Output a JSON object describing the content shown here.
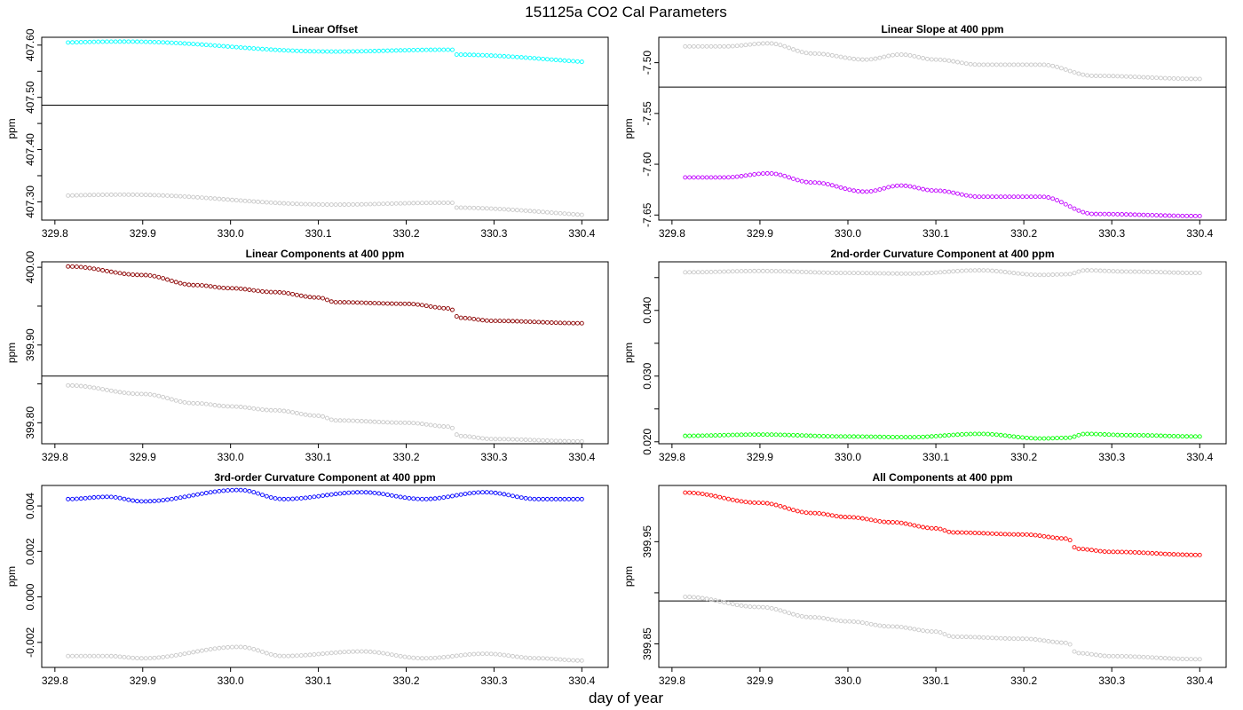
{
  "figure": {
    "title": "151125a   CO2 Cal Parameters",
    "xlabel": "day of year"
  },
  "chart_data": [
    {
      "type": "scatter",
      "title": "Linear Offset",
      "ylabel": "ppm",
      "xlim": [
        329.785,
        330.43
      ],
      "ylim": [
        407.265,
        407.615
      ],
      "xticks": [
        329.8,
        329.9,
        330.0,
        330.1,
        330.2,
        330.3,
        330.4
      ],
      "xtick_labels": [
        "329.8",
        "329.9",
        "330.0",
        "330.1",
        "330.2",
        "330.3",
        "330.4"
      ],
      "yticks": [
        407.3,
        407.35,
        407.4,
        407.45,
        407.5,
        407.55,
        407.6
      ],
      "ytick_labels": [
        "407.30",
        "",
        "407.40",
        "",
        "407.50",
        "",
        "407.60"
      ],
      "hline": 407.485,
      "series": [
        {
          "color": "#00ffff",
          "shape": "step",
          "start": 407.605,
          "end": 407.571,
          "jump_at": 330.255,
          "jump": -0.009,
          "wave": 0.005
        },
        {
          "color": "#c8c8c8",
          "shape": "step",
          "start": 407.312,
          "end": 407.278,
          "jump_at": 330.255,
          "jump": -0.009,
          "wave": 0.005
        }
      ]
    },
    {
      "type": "scatter",
      "title": "Linear Slope at 400 ppm",
      "ylabel": "ppm",
      "xlim": [
        329.785,
        330.43
      ],
      "ylim": [
        -7.655,
        -7.475
      ],
      "xticks": [
        329.8,
        329.9,
        330.0,
        330.1,
        330.2,
        330.3,
        330.4
      ],
      "xtick_labels": [
        "329.8",
        "329.9",
        "330.0",
        "330.1",
        "330.2",
        "330.3",
        "330.4"
      ],
      "yticks": [
        -7.65,
        -7.6,
        -7.55,
        -7.5
      ],
      "ytick_labels": [
        "-7.65",
        "-7.60",
        "-7.55",
        "-7.50"
      ],
      "hline": -7.524,
      "series": [
        {
          "color": "#c000ff",
          "shape": "points",
          "x": [
            329.815,
            329.86,
            329.91,
            329.96,
            330.02,
            330.06,
            330.1,
            330.15,
            330.22,
            330.28,
            330.4
          ],
          "y": [
            -7.613,
            -7.613,
            -7.609,
            -7.618,
            -7.627,
            -7.621,
            -7.626,
            -7.632,
            -7.632,
            -7.649,
            -7.651
          ]
        },
        {
          "color": "#c8c8c8",
          "shape": "points",
          "x": [
            329.815,
            329.86,
            329.91,
            329.96,
            330.02,
            330.06,
            330.1,
            330.15,
            330.22,
            330.28,
            330.4
          ],
          "y": [
            -7.484,
            -7.484,
            -7.481,
            -7.491,
            -7.497,
            -7.492,
            -7.497,
            -7.502,
            -7.502,
            -7.513,
            -7.516
          ]
        }
      ]
    },
    {
      "type": "scatter",
      "title": "Linear Components at 400 ppm",
      "ylabel": "ppm",
      "xlim": [
        329.785,
        330.43
      ],
      "ylim": [
        399.773,
        400.007
      ],
      "xticks": [
        329.8,
        329.9,
        330.0,
        330.1,
        330.2,
        330.3,
        330.4
      ],
      "xtick_labels": [
        "329.8",
        "329.9",
        "330.0",
        "330.1",
        "330.2",
        "330.3",
        "330.4"
      ],
      "yticks": [
        399.8,
        399.85,
        399.9,
        399.95,
        400.0
      ],
      "ytick_labels": [
        "399.80",
        "",
        "399.90",
        "",
        "400.00"
      ],
      "hline": 399.86,
      "series": [
        {
          "color": "#8b0000",
          "shape": "points",
          "x": [
            329.815,
            329.9,
            329.96,
            330.0,
            330.05,
            330.1,
            330.12,
            330.2,
            330.25,
            330.26,
            330.3,
            330.4
          ],
          "y": [
            400.001,
            399.99,
            399.977,
            399.973,
            399.968,
            399.961,
            399.955,
            399.953,
            399.947,
            399.935,
            399.931,
            399.928
          ]
        },
        {
          "color": "#c8c8c8",
          "shape": "points",
          "x": [
            329.815,
            329.9,
            329.96,
            330.0,
            330.05,
            330.1,
            330.12,
            330.2,
            330.25,
            330.26,
            330.3,
            330.4
          ],
          "y": [
            399.848,
            399.837,
            399.825,
            399.821,
            399.816,
            399.809,
            399.803,
            399.8,
            399.795,
            399.783,
            399.779,
            399.776
          ]
        }
      ]
    },
    {
      "type": "scatter",
      "title": "2nd-order Curvature Component at 400 ppm",
      "ylabel": "ppm",
      "xlim": [
        329.785,
        330.43
      ],
      "ylim": [
        0.0197,
        0.0474
      ],
      "xticks": [
        329.8,
        329.9,
        330.0,
        330.1,
        330.2,
        330.3,
        330.4
      ],
      "xtick_labels": [
        "329.8",
        "329.9",
        "330.0",
        "330.1",
        "330.2",
        "330.3",
        "330.4"
      ],
      "yticks": [
        0.02,
        0.025,
        0.03,
        0.035,
        0.04,
        0.045
      ],
      "ytick_labels": [
        "0.020",
        "",
        "0.030",
        "",
        "0.040",
        ""
      ],
      "hline": null,
      "series": [
        {
          "color": "#00ff00",
          "shape": "points",
          "x": [
            329.815,
            329.9,
            330.0,
            330.07,
            330.15,
            330.22,
            330.25,
            330.27,
            330.32,
            330.4
          ],
          "y": [
            0.0209,
            0.0211,
            0.0208,
            0.0207,
            0.0212,
            0.0205,
            0.0206,
            0.0212,
            0.021,
            0.0208
          ]
        },
        {
          "color": "#c8c8c8",
          "shape": "points",
          "x": [
            329.815,
            329.9,
            330.0,
            330.07,
            330.15,
            330.22,
            330.25,
            330.27,
            330.32,
            330.4
          ],
          "y": [
            0.0458,
            0.046,
            0.0457,
            0.0456,
            0.0461,
            0.0454,
            0.0455,
            0.0461,
            0.0459,
            0.0457
          ]
        }
      ]
    },
    {
      "type": "scatter",
      "title": "3rd-order Curvature Component at 400 ppm",
      "ylabel": "ppm",
      "xlim": [
        329.785,
        330.43
      ],
      "ylim": [
        -0.0031,
        0.0049
      ],
      "xticks": [
        329.8,
        329.9,
        330.0,
        330.1,
        330.2,
        330.3,
        330.4
      ],
      "xtick_labels": [
        "329.8",
        "329.9",
        "330.0",
        "330.1",
        "330.2",
        "330.3",
        "330.4"
      ],
      "yticks": [
        -0.002,
        0.0,
        0.002,
        0.004
      ],
      "ytick_labels": [
        "-0.002",
        "0.000",
        "0.002",
        "0.004"
      ],
      "hline": null,
      "series": [
        {
          "color": "#0000ff",
          "shape": "points",
          "x": [
            329.815,
            329.86,
            329.9,
            330.01,
            330.06,
            330.15,
            330.22,
            330.29,
            330.35,
            330.4
          ],
          "y": [
            0.0043,
            0.0044,
            0.0042,
            0.0047,
            0.0043,
            0.0046,
            0.0043,
            0.0046,
            0.0043,
            0.0043
          ]
        },
        {
          "color": "#c8c8c8",
          "shape": "points",
          "x": [
            329.815,
            329.86,
            329.9,
            330.01,
            330.06,
            330.15,
            330.22,
            330.29,
            330.35,
            330.4
          ],
          "y": [
            -0.0026,
            -0.0026,
            -0.0027,
            -0.0022,
            -0.0026,
            -0.0024,
            -0.0027,
            -0.0025,
            -0.0027,
            -0.0028
          ]
        }
      ]
    },
    {
      "type": "scatter",
      "title": "All Components at 400 ppm",
      "ylabel": "ppm",
      "xlim": [
        329.785,
        330.43
      ],
      "ylim": [
        399.827,
        400.005
      ],
      "xticks": [
        329.8,
        329.9,
        330.0,
        330.1,
        330.2,
        330.3,
        330.4
      ],
      "xtick_labels": [
        "329.8",
        "329.9",
        "330.0",
        "330.1",
        "330.2",
        "330.3",
        "330.4"
      ],
      "yticks": [
        399.85,
        399.9,
        399.95
      ],
      "ytick_labels": [
        "399.85",
        "",
        "399.95"
      ],
      "hline": 399.892,
      "series": [
        {
          "color": "#ff0000",
          "shape": "points",
          "x": [
            329.815,
            329.9,
            329.96,
            330.0,
            330.05,
            330.1,
            330.12,
            330.2,
            330.25,
            330.26,
            330.3,
            330.4
          ],
          "y": [
            399.998,
            399.988,
            399.978,
            399.974,
            399.969,
            399.963,
            399.959,
            399.957,
            399.953,
            399.943,
            399.94,
            399.937
          ]
        },
        {
          "color": "#c8c8c8",
          "shape": "points",
          "x": [
            329.815,
            329.9,
            329.96,
            330.0,
            330.05,
            330.1,
            330.12,
            330.2,
            330.25,
            330.26,
            330.3,
            330.4
          ],
          "y": [
            399.896,
            399.886,
            399.876,
            399.872,
            399.867,
            399.862,
            399.857,
            399.855,
            399.851,
            399.841,
            399.838,
            399.835
          ]
        }
      ]
    }
  ]
}
